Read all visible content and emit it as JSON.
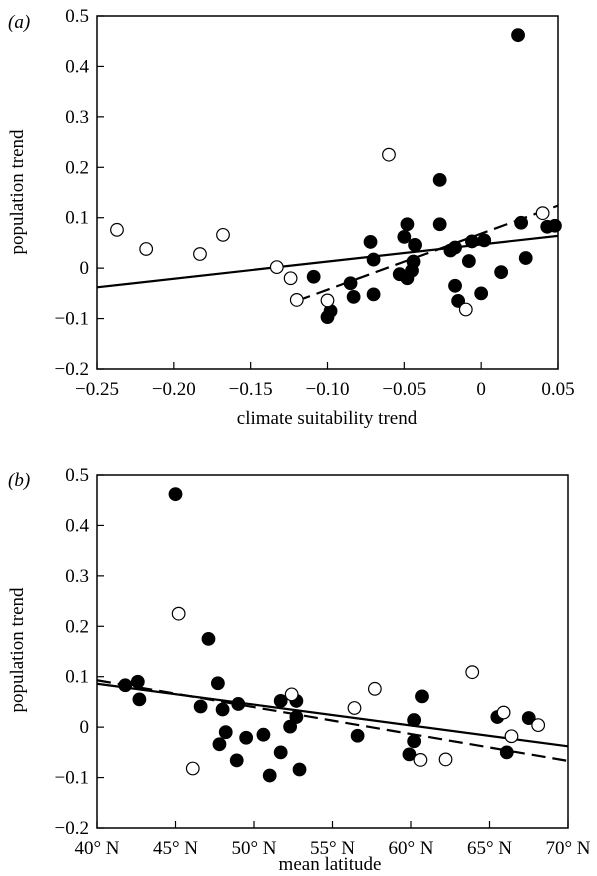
{
  "chart_data": [
    {
      "type": "scatter",
      "panel_label": "(a)",
      "xlabel": "climate suitability trend",
      "ylabel": "population trend",
      "xlim": [
        -0.25,
        0.05
      ],
      "ylim": [
        -0.2,
        0.5
      ],
      "x_ticks": [
        -0.25,
        -0.2,
        -0.15,
        -0.1,
        -0.05,
        0,
        0.05
      ],
      "x_tick_labels": [
        "−0.25",
        "−0.20",
        "−0.15",
        "−0.10",
        "−0.05",
        "0",
        "0.05"
      ],
      "y_ticks": [
        -0.2,
        -0.1,
        0,
        0.1,
        0.2,
        0.3,
        0.4,
        0.5
      ],
      "y_tick_labels": [
        "−0.2",
        "−0.1",
        "0",
        "0.1",
        "0.2",
        "0.3",
        "0.4",
        "0.5"
      ],
      "series": [
        {
          "marker": "filled",
          "points": [
            [
              0.024,
              0.462
            ],
            [
              -0.027,
              0.175
            ],
            [
              0.026,
              0.09
            ],
            [
              -0.048,
              0.087
            ],
            [
              -0.027,
              0.087
            ],
            [
              -0.072,
              0.052
            ],
            [
              -0.05,
              0.062
            ],
            [
              -0.043,
              0.046
            ],
            [
              -0.006,
              0.053
            ],
            [
              0.002,
              0.055
            ],
            [
              -0.017,
              0.041
            ],
            [
              -0.02,
              0.035
            ],
            [
              -0.07,
              0.017
            ],
            [
              -0.044,
              0.013
            ],
            [
              -0.008,
              0.014
            ],
            [
              0.029,
              0.02
            ],
            [
              0.043,
              0.082
            ],
            [
              0.048,
              0.084
            ],
            [
              -0.045,
              -0.005
            ],
            [
              -0.053,
              -0.012
            ],
            [
              -0.048,
              -0.02
            ],
            [
              -0.109,
              -0.017
            ],
            [
              0.013,
              -0.008
            ],
            [
              -0.085,
              -0.03
            ],
            [
              -0.017,
              -0.035
            ],
            [
              -0.083,
              -0.057
            ],
            [
              -0.07,
              -0.052
            ],
            [
              0.0,
              -0.05
            ],
            [
              -0.015,
              -0.065
            ],
            [
              -0.098,
              -0.085
            ],
            [
              -0.1,
              -0.097
            ]
          ]
        },
        {
          "marker": "open",
          "points": [
            [
              -0.237,
              0.076
            ],
            [
              -0.218,
              0.038
            ],
            [
              -0.183,
              0.028
            ],
            [
              -0.168,
              0.066
            ],
            [
              -0.06,
              0.225
            ],
            [
              0.04,
              0.109
            ],
            [
              -0.133,
              0.002
            ],
            [
              -0.124,
              -0.02
            ],
            [
              -0.12,
              -0.063
            ],
            [
              -0.1,
              -0.064
            ],
            [
              -0.01,
              -0.082
            ]
          ]
        }
      ],
      "fit_lines": [
        {
          "style": "solid",
          "x": [
            -0.25,
            0.05
          ],
          "y": [
            -0.038,
            0.064
          ]
        },
        {
          "style": "dashed",
          "x": [
            -0.12,
            0.05
          ],
          "y": [
            -0.065,
            0.124
          ]
        }
      ]
    },
    {
      "type": "scatter",
      "panel_label": "(b)",
      "xlabel": "mean latitude",
      "ylabel": "population trend",
      "xlim": [
        40,
        70
      ],
      "ylim": [
        -0.2,
        0.5
      ],
      "x_ticks": [
        40,
        45,
        50,
        55,
        60,
        65,
        70
      ],
      "x_tick_labels": [
        "40° N",
        "45° N",
        "50° N",
        "55° N",
        "60° N",
        "65° N",
        "70° N"
      ],
      "y_ticks": [
        -0.2,
        -0.1,
        0,
        0.1,
        0.2,
        0.3,
        0.4,
        0.5
      ],
      "y_tick_labels": [
        "−0.2",
        "−0.1",
        "0",
        "0.1",
        "0.2",
        "0.3",
        "0.4",
        "0.5"
      ],
      "series": [
        {
          "marker": "filled",
          "points": [
            [
              45.0,
              0.462
            ],
            [
              47.1,
              0.175
            ],
            [
              42.6,
              0.09
            ],
            [
              47.7,
              0.087
            ],
            [
              41.8,
              0.083
            ],
            [
              42.7,
              0.055
            ],
            [
              51.7,
              0.052
            ],
            [
              52.7,
              0.052
            ],
            [
              46.6,
              0.041
            ],
            [
              48.0,
              0.035
            ],
            [
              49.0,
              0.046
            ],
            [
              52.7,
              0.02
            ],
            [
              52.3,
              0.001
            ],
            [
              47.8,
              -0.034
            ],
            [
              48.2,
              -0.01
            ],
            [
              50.6,
              -0.015
            ],
            [
              49.5,
              -0.021
            ],
            [
              56.6,
              -0.017
            ],
            [
              60.2,
              0.014
            ],
            [
              60.7,
              0.061
            ],
            [
              65.5,
              0.02
            ],
            [
              67.5,
              0.018
            ],
            [
              51.7,
              -0.05
            ],
            [
              59.9,
              -0.054
            ],
            [
              60.2,
              -0.028
            ],
            [
              66.1,
              -0.05
            ],
            [
              48.9,
              -0.066
            ],
            [
              52.9,
              -0.084
            ],
            [
              51.0,
              -0.096
            ]
          ]
        },
        {
          "marker": "open",
          "points": [
            [
              45.2,
              0.225
            ],
            [
              63.9,
              0.109
            ],
            [
              57.7,
              0.076
            ],
            [
              52.4,
              0.065
            ],
            [
              56.4,
              0.038
            ],
            [
              65.9,
              0.029
            ],
            [
              68.1,
              0.004
            ],
            [
              66.4,
              -0.018
            ],
            [
              46.1,
              -0.082
            ],
            [
              60.6,
              -0.065
            ],
            [
              62.2,
              -0.064
            ]
          ]
        }
      ],
      "fit_lines": [
        {
          "style": "solid",
          "x": [
            40,
            70
          ],
          "y": [
            0.086,
            -0.038
          ]
        },
        {
          "style": "dashed",
          "x": [
            40,
            70
          ],
          "y": [
            0.093,
            -0.067
          ]
        }
      ]
    }
  ]
}
